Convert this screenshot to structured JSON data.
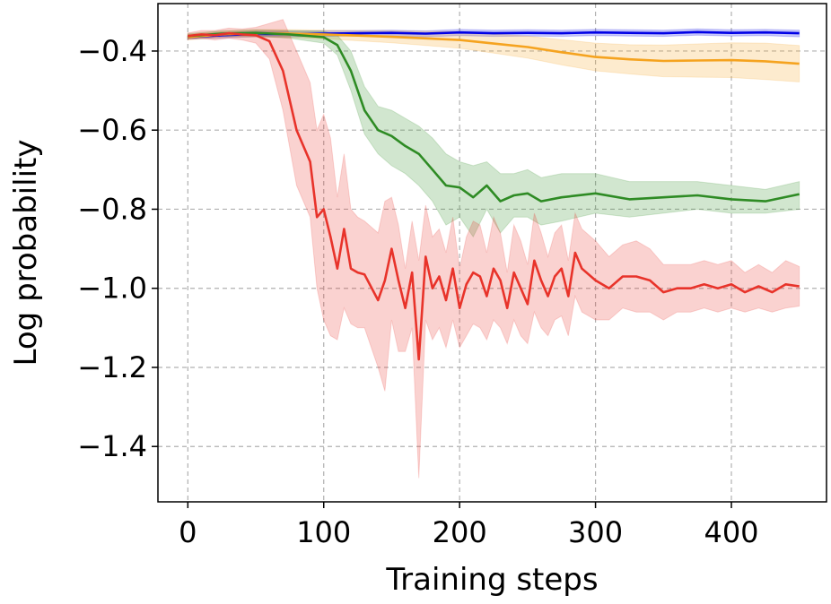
{
  "chart_data": {
    "type": "line",
    "xlabel": "Training steps",
    "ylabel": "Log probability",
    "xlim": [
      -22,
      470
    ],
    "ylim": [
      -1.54,
      -0.28
    ],
    "xticks": [
      0,
      100,
      200,
      300,
      400
    ],
    "yticks": [
      -0.4,
      -0.6,
      -0.8,
      -1.0,
      -1.2,
      -1.4
    ],
    "xtick_labels": [
      "0",
      "100",
      "200",
      "300",
      "400"
    ],
    "ytick_labels": [
      "−0.4",
      "−0.6",
      "−0.8",
      "−1.0",
      "−1.2",
      "−1.4"
    ],
    "grid": true,
    "series": [
      {
        "color": "#0000e6",
        "x": [
          0,
          25,
          50,
          75,
          100,
          125,
          150,
          175,
          200,
          225,
          250,
          275,
          300,
          325,
          350,
          375,
          400,
          425,
          450
        ],
        "y": [
          -0.365,
          -0.36,
          -0.357,
          -0.357,
          -0.356,
          -0.355,
          -0.354,
          -0.356,
          -0.353,
          -0.355,
          -0.354,
          -0.355,
          -0.353,
          -0.354,
          -0.355,
          -0.352,
          -0.354,
          -0.353,
          -0.355
        ],
        "lower": [
          -0.37,
          -0.367,
          -0.364,
          -0.364,
          -0.363,
          -0.362,
          -0.362,
          -0.364,
          -0.361,
          -0.363,
          -0.362,
          -0.363,
          -0.361,
          -0.362,
          -0.363,
          -0.36,
          -0.362,
          -0.361,
          -0.364
        ],
        "upper": [
          -0.36,
          -0.353,
          -0.35,
          -0.35,
          -0.349,
          -0.348,
          -0.347,
          -0.349,
          -0.345,
          -0.347,
          -0.346,
          -0.347,
          -0.345,
          -0.346,
          -0.347,
          -0.344,
          -0.346,
          -0.345,
          -0.347
        ]
      },
      {
        "color": "#f5a31f",
        "x": [
          0,
          25,
          50,
          75,
          100,
          125,
          150,
          175,
          200,
          225,
          250,
          275,
          300,
          325,
          350,
          375,
          400,
          425,
          450
        ],
        "y": [
          -0.365,
          -0.358,
          -0.355,
          -0.356,
          -0.358,
          -0.361,
          -0.364,
          -0.368,
          -0.372,
          -0.381,
          -0.39,
          -0.403,
          -0.415,
          -0.421,
          -0.425,
          -0.424,
          -0.423,
          -0.426,
          -0.432
        ],
        "lower": [
          -0.372,
          -0.366,
          -0.364,
          -0.366,
          -0.369,
          -0.374,
          -0.379,
          -0.386,
          -0.393,
          -0.405,
          -0.418,
          -0.435,
          -0.45,
          -0.458,
          -0.465,
          -0.466,
          -0.467,
          -0.472,
          -0.478
        ],
        "upper": [
          -0.358,
          -0.35,
          -0.346,
          -0.346,
          -0.347,
          -0.348,
          -0.349,
          -0.35,
          -0.351,
          -0.357,
          -0.362,
          -0.371,
          -0.38,
          -0.384,
          -0.385,
          -0.382,
          -0.379,
          -0.38,
          -0.386
        ]
      },
      {
        "color": "#2e8b24",
        "x": [
          0,
          25,
          50,
          75,
          100,
          110,
          120,
          130,
          140,
          150,
          160,
          170,
          180,
          190,
          200,
          210,
          220,
          230,
          240,
          250,
          260,
          275,
          300,
          325,
          350,
          375,
          400,
          425,
          450
        ],
        "y": [
          -0.362,
          -0.356,
          -0.354,
          -0.358,
          -0.365,
          -0.385,
          -0.45,
          -0.55,
          -0.6,
          -0.615,
          -0.64,
          -0.66,
          -0.7,
          -0.74,
          -0.745,
          -0.77,
          -0.74,
          -0.78,
          -0.765,
          -0.76,
          -0.78,
          -0.77,
          -0.76,
          -0.775,
          -0.77,
          -0.765,
          -0.775,
          -0.78,
          -0.762
        ],
        "lower": [
          -0.368,
          -0.363,
          -0.362,
          -0.368,
          -0.38,
          -0.41,
          -0.5,
          -0.61,
          -0.66,
          -0.69,
          -0.71,
          -0.74,
          -0.78,
          -0.84,
          -0.82,
          -0.87,
          -0.8,
          -0.86,
          -0.82,
          -0.82,
          -0.84,
          -0.83,
          -0.81,
          -0.82,
          -0.81,
          -0.8,
          -0.81,
          -0.81,
          -0.8
        ],
        "upper": [
          -0.356,
          -0.349,
          -0.346,
          -0.348,
          -0.35,
          -0.36,
          -0.4,
          -0.49,
          -0.54,
          -0.55,
          -0.57,
          -0.59,
          -0.62,
          -0.66,
          -0.68,
          -0.69,
          -0.68,
          -0.71,
          -0.71,
          -0.7,
          -0.72,
          -0.71,
          -0.71,
          -0.73,
          -0.73,
          -0.73,
          -0.74,
          -0.75,
          -0.73
        ]
      },
      {
        "color": "#e8332a",
        "x": [
          0,
          10,
          20,
          30,
          40,
          50,
          60,
          70,
          80,
          90,
          95,
          100,
          105,
          110,
          115,
          120,
          125,
          130,
          140,
          145,
          150,
          155,
          160,
          165,
          170,
          175,
          180,
          185,
          190,
          195,
          200,
          205,
          210,
          215,
          220,
          225,
          230,
          235,
          240,
          245,
          250,
          255,
          260,
          265,
          270,
          275,
          280,
          285,
          290,
          300,
          310,
          320,
          330,
          340,
          350,
          360,
          370,
          380,
          390,
          400,
          410,
          420,
          430,
          440,
          450
        ],
        "y": [
          -0.362,
          -0.358,
          -0.36,
          -0.355,
          -0.358,
          -0.36,
          -0.375,
          -0.45,
          -0.6,
          -0.68,
          -0.82,
          -0.8,
          -0.87,
          -0.95,
          -0.85,
          -0.95,
          -0.96,
          -0.965,
          -1.03,
          -0.98,
          -0.9,
          -0.98,
          -1.05,
          -0.96,
          -1.18,
          -0.92,
          -1.0,
          -0.97,
          -1.03,
          -0.95,
          -1.05,
          -0.99,
          -0.96,
          -0.97,
          -1.02,
          -0.95,
          -0.98,
          -1.05,
          -0.96,
          -1.0,
          -1.04,
          -0.93,
          -0.98,
          -1.02,
          -0.97,
          -0.95,
          -1.02,
          -0.91,
          -0.95,
          -0.98,
          -1.0,
          -0.97,
          -0.97,
          -0.98,
          -1.01,
          -1.0,
          -1.0,
          -0.99,
          -1.0,
          -0.99,
          -1.01,
          -0.995,
          -1.01,
          -0.99,
          -0.995
        ],
        "lower": [
          -0.37,
          -0.368,
          -0.372,
          -0.368,
          -0.372,
          -0.38,
          -0.42,
          -0.55,
          -0.74,
          -0.82,
          -1.0,
          -1.08,
          -1.12,
          -1.13,
          -1.05,
          -1.09,
          -1.1,
          -1.1,
          -1.2,
          -1.26,
          -1.08,
          -1.16,
          -1.16,
          -1.1,
          -1.48,
          -1.08,
          -1.13,
          -1.1,
          -1.15,
          -1.08,
          -1.15,
          -1.12,
          -1.09,
          -1.1,
          -1.13,
          -1.08,
          -1.1,
          -1.14,
          -1.08,
          -1.12,
          -1.14,
          -1.06,
          -1.1,
          -1.12,
          -1.08,
          -1.07,
          -1.12,
          -1.02,
          -1.06,
          -1.08,
          -1.08,
          -1.05,
          -1.06,
          -1.06,
          -1.08,
          -1.06,
          -1.06,
          -1.05,
          -1.06,
          -1.05,
          -1.06,
          -1.05,
          -1.06,
          -1.05,
          -1.045
        ],
        "upper": [
          -0.354,
          -0.348,
          -0.348,
          -0.342,
          -0.344,
          -0.34,
          -0.33,
          -0.32,
          -0.4,
          -0.48,
          -0.6,
          -0.56,
          -0.62,
          -0.77,
          -0.66,
          -0.8,
          -0.82,
          -0.83,
          -0.86,
          -0.78,
          -0.77,
          -0.84,
          -0.95,
          -0.83,
          -0.93,
          -0.79,
          -0.87,
          -0.85,
          -0.91,
          -0.82,
          -0.95,
          -0.87,
          -0.83,
          -0.84,
          -0.91,
          -0.82,
          -0.86,
          -0.96,
          -0.84,
          -0.88,
          -0.94,
          -0.81,
          -0.86,
          -0.92,
          -0.86,
          -0.84,
          -0.93,
          -0.81,
          -0.85,
          -0.88,
          -0.92,
          -0.89,
          -0.88,
          -0.9,
          -0.94,
          -0.94,
          -0.94,
          -0.93,
          -0.94,
          -0.93,
          -0.96,
          -0.94,
          -0.96,
          -0.93,
          -0.945
        ]
      }
    ]
  }
}
